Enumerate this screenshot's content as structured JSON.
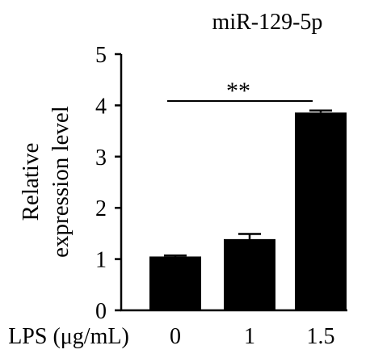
{
  "chart_data": {
    "type": "bar",
    "title": "miR-129-5p",
    "ylabel_line1": "Relative",
    "ylabel_line2": "expression level",
    "xlabel": "LPS (μg/mL)",
    "categories": [
      "0",
      "1",
      "1.5"
    ],
    "values": [
      1.05,
      1.39,
      3.86
    ],
    "errors": [
      0.02,
      0.1,
      0.04
    ],
    "ylim": [
      0,
      5
    ],
    "yticks": [
      "0",
      "1",
      "2",
      "3",
      "4",
      "5"
    ],
    "significance": {
      "label": "**",
      "from_category": "0",
      "to_category": "1.5"
    },
    "bar_color": "#000000",
    "grid": false,
    "legend": "none"
  }
}
